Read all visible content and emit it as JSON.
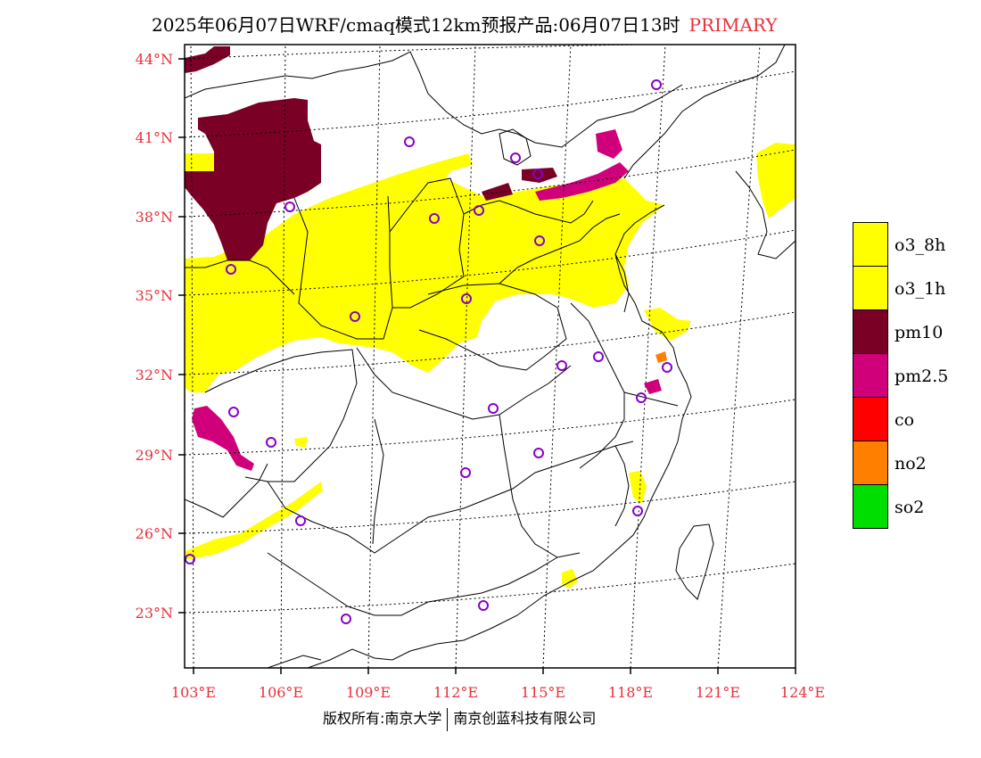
{
  "title": {
    "main": "2025年06月07日WRF/cmaq模式12km预报产品:06月07日13时",
    "mode": "PRIMARY"
  },
  "axes": {
    "lat_ticks": [
      "44°N",
      "41°N",
      "38°N",
      "35°N",
      "32°N",
      "29°N",
      "26°N",
      "23°N"
    ],
    "lon_ticks": [
      "103°E",
      "106°E",
      "109°E",
      "112°E",
      "115°E",
      "118°E",
      "121°E",
      "124°E"
    ]
  },
  "legend": [
    {
      "label": "o3_8h",
      "color": "#ffff00"
    },
    {
      "label": "o3_1h",
      "color": "#ffff00"
    },
    {
      "label": "pm10",
      "color": "#7a0026"
    },
    {
      "label": "pm2.5",
      "color": "#d0007a"
    },
    {
      "label": "co",
      "color": "#ff0000"
    },
    {
      "label": "no2",
      "color": "#ff8000"
    },
    {
      "label": "so2",
      "color": "#00dd00"
    }
  ],
  "colors": {
    "label_red": "#e8303a",
    "station": "#8800cc"
  },
  "footer": {
    "left": "版权所有:南京大学",
    "right": "南京创蓝科技有限公司"
  }
}
